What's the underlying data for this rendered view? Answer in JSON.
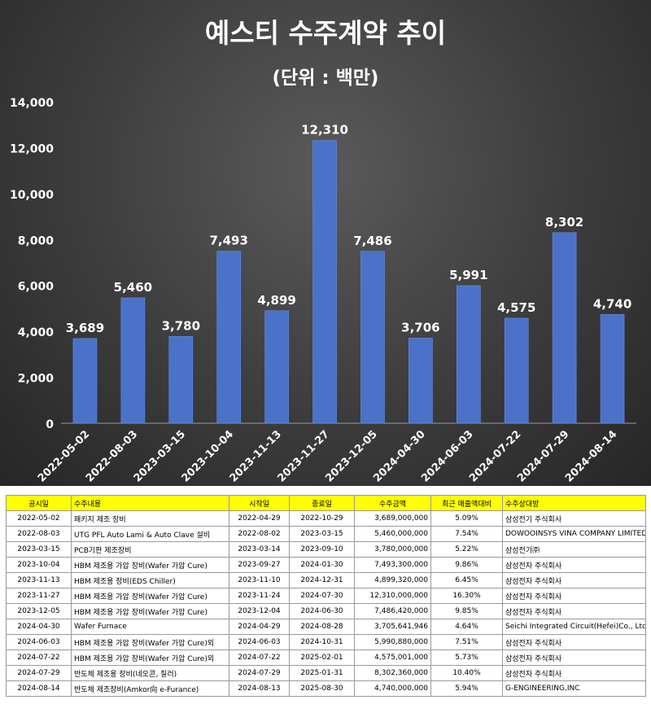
{
  "chart_data": {
    "type": "bar",
    "title": "예스티 수주계약 추이",
    "subtitle": "(단위 : 백만)",
    "categories": [
      "2022-05-02",
      "2022-08-03",
      "2023-03-15",
      "2023-10-04",
      "2023-11-13",
      "2023-11-27",
      "2023-12-05",
      "2024-04-30",
      "2024-06-03",
      "2024-07-22",
      "2024-07-29",
      "2024-08-14"
    ],
    "values": [
      3689,
      5460,
      3780,
      7493,
      4899,
      12310,
      7486,
      3706,
      5991,
      4575,
      8302,
      4740
    ],
    "value_labels": [
      "3,689",
      "5,460",
      "3,780",
      "7,493",
      "4,899",
      "12,310",
      "7,486",
      "3,706",
      "5,991",
      "4,575",
      "8,302",
      "4,740"
    ],
    "ylim": [
      0,
      14000
    ],
    "yticks": [
      0,
      2000,
      4000,
      6000,
      8000,
      10000,
      12000,
      14000
    ],
    "ytick_labels": [
      "0",
      "2,000",
      "4,000",
      "6,000",
      "8,000",
      "10,000",
      "12,000",
      "14,000"
    ],
    "xlabel": "",
    "ylabel": "",
    "grid": false,
    "legend": "none",
    "colors": {
      "bar": "#4a72c8",
      "bar_edge": "#6a8fe0",
      "background": "#3a3a3a",
      "text": "#ffffff"
    }
  },
  "table": {
    "headers": [
      "공시일",
      "수주내용",
      "시작일",
      "종료일",
      "수주금액",
      "최근 매출액대비",
      "수주상대방"
    ],
    "rows": [
      [
        "2022-05-02",
        "패키지 제조 장비",
        "2022-04-29",
        "2022-10-29",
        "3,689,000,000",
        "5.09%",
        "삼성전기 주식회사"
      ],
      [
        "2022-08-03",
        "UTG PFL Auto Lami & Auto Clave 설비",
        "2022-08-02",
        "2023-03-15",
        "5,460,000,000",
        "7.54%",
        "DOWOOINSYS VINA COMPANY LIMITED"
      ],
      [
        "2023-03-15",
        "PCB기판 제조장비",
        "2023-03-14",
        "2023-09-10",
        "3,780,000,000",
        "5.22%",
        "삼성전기㈜"
      ],
      [
        "2023-10-04",
        "HBM 제조용 가압 장비(Wafer 가압 Cure)",
        "2023-09-27",
        "2024-01-30",
        "7,493,300,000",
        "9.86%",
        "삼성전자 주식회사"
      ],
      [
        "2023-11-13",
        "HBM 제조용 장비(EDS Chiller)",
        "2023-11-10",
        "2024-12-31",
        "4,899,320,000",
        "6.45%",
        "삼성전자 주식회사"
      ],
      [
        "2023-11-27",
        "HBM 제조용 가압 장비(Wafer 가압 Cure)",
        "2023-11-24",
        "2024-07-30",
        "12,310,000,000",
        "16.30%",
        "삼성전자 주식회사"
      ],
      [
        "2023-12-05",
        "HBM 제조용 가압 장비(Wafer 가압 Cure)",
        "2023-12-04",
        "2024-06-30",
        "7,486,420,000",
        "9.85%",
        "삼성전자 주식회사"
      ],
      [
        "2024-04-30",
        "Wafer Furnace",
        "2024-04-29",
        "2024-08-28",
        "3,705,641,946",
        "4.64%",
        "Seichi Integrated Circuit(Hefei)Co., Ltd"
      ],
      [
        "2024-06-03",
        "HBM 제조용 가압 장비(Wafer 가압 Cure)외",
        "2024-06-03",
        "2024-10-31",
        "5,990,880,000",
        "7.51%",
        "삼성전자 주식회사"
      ],
      [
        "2024-07-22",
        "HBM 제조용 가압 장비(Wafer 가압 Cure)외",
        "2024-07-22",
        "2025-02-01",
        "4,575,001,000",
        "5.73%",
        "삼성전자 주식회사"
      ],
      [
        "2024-07-29",
        "반도체 제조용 장비(네오콘, 칠러)",
        "2024-07-29",
        "2025-01-31",
        "8,302,360,000",
        "10.40%",
        "삼성전자 주식회사"
      ],
      [
        "2024-08-14",
        "반도체 제조장비(Amkor向 e-Furance)",
        "2024-08-13",
        "2025-08-30",
        "4,740,000,000",
        "5.94%",
        "G-ENGINEERING,INC"
      ]
    ]
  }
}
